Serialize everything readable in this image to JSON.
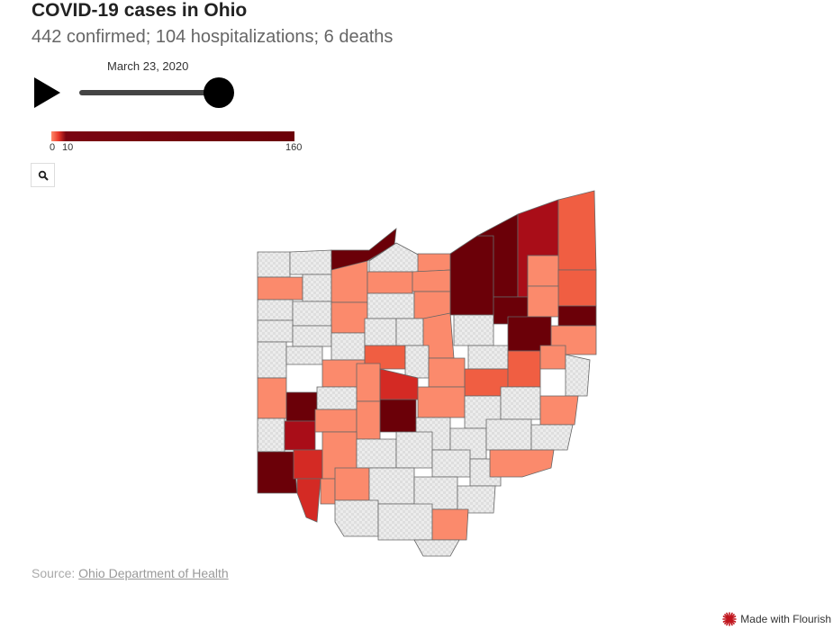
{
  "header": {
    "title": "COVID-19 cases in Ohio",
    "subtitle": "442 confirmed; 104 hospitalizations; 6 deaths"
  },
  "timeline": {
    "date": "March 23, 2020",
    "progress": 0.87
  },
  "legend": {
    "ticks": [
      "0",
      "10",
      "160"
    ],
    "min": 0,
    "mid": 10,
    "max": 160
  },
  "colors": {
    "none": "#e8e8e8",
    "light": "#fb8a6c",
    "medium": "#f05e42",
    "strong": "#d42a24",
    "darker": "#a90d18",
    "darkest": "#6b0008",
    "border": "#666666"
  },
  "source": {
    "prefix": "Source: ",
    "link_text": "Ohio Department of Health"
  },
  "footer": {
    "flourish_label": "Made with Flourish"
  }
}
